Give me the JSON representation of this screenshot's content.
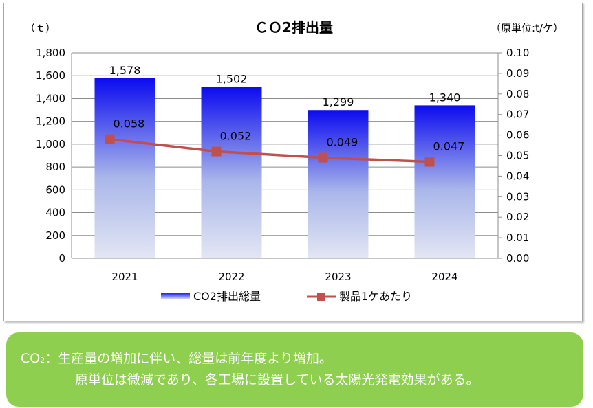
{
  "chart_data": {
    "type": "bar",
    "title": "ＣＯ2排出量",
    "left_axis_unit": "（ｔ）",
    "right_axis_unit": "（原単位:t/ケ）",
    "categories": [
      "2021",
      "2022",
      "2023",
      "2024"
    ],
    "y_left": {
      "min": 0,
      "max": 1800,
      "step": 200,
      "tick_labels": [
        "0",
        "200",
        "400",
        "600",
        "800",
        "1,000",
        "1,200",
        "1,400",
        "1,600",
        "1,800"
      ]
    },
    "y_right": {
      "min": 0,
      "max": 0.1,
      "step": 0.01,
      "tick_labels": [
        "0.00",
        "0.01",
        "0.02",
        "0.03",
        "0.04",
        "0.05",
        "0.06",
        "0.07",
        "0.08",
        "0.09",
        "0.10"
      ]
    },
    "grid": true,
    "legend_position": "bottom",
    "series": [
      {
        "name": "CO2排出総量",
        "type": "bar",
        "axis": "left",
        "values": [
          1578,
          1502,
          1299,
          1340
        ],
        "labels": [
          "1,578",
          "1,502",
          "1,299",
          "1,340"
        ],
        "color_top": "#0b0bef",
        "color_bottom": "#dfe3f3"
      },
      {
        "name": "製品1ケあたり",
        "type": "line",
        "axis": "right",
        "values": [
          0.058,
          0.052,
          0.049,
          0.047
        ],
        "labels": [
          "0.058",
          "0.052",
          "0.049",
          "0.047"
        ],
        "color": "#c0504d"
      }
    ]
  },
  "note": {
    "co2_main": "CO",
    "co2_sub": "2",
    "line1_rest": "：生産量の増加に伴い、総量は前年度より増加。",
    "line2": "原単位は微減であり、各工場に設置している太陽光発電効果がある。",
    "background": "#8fcf4f",
    "text_color": "#ffffff"
  }
}
